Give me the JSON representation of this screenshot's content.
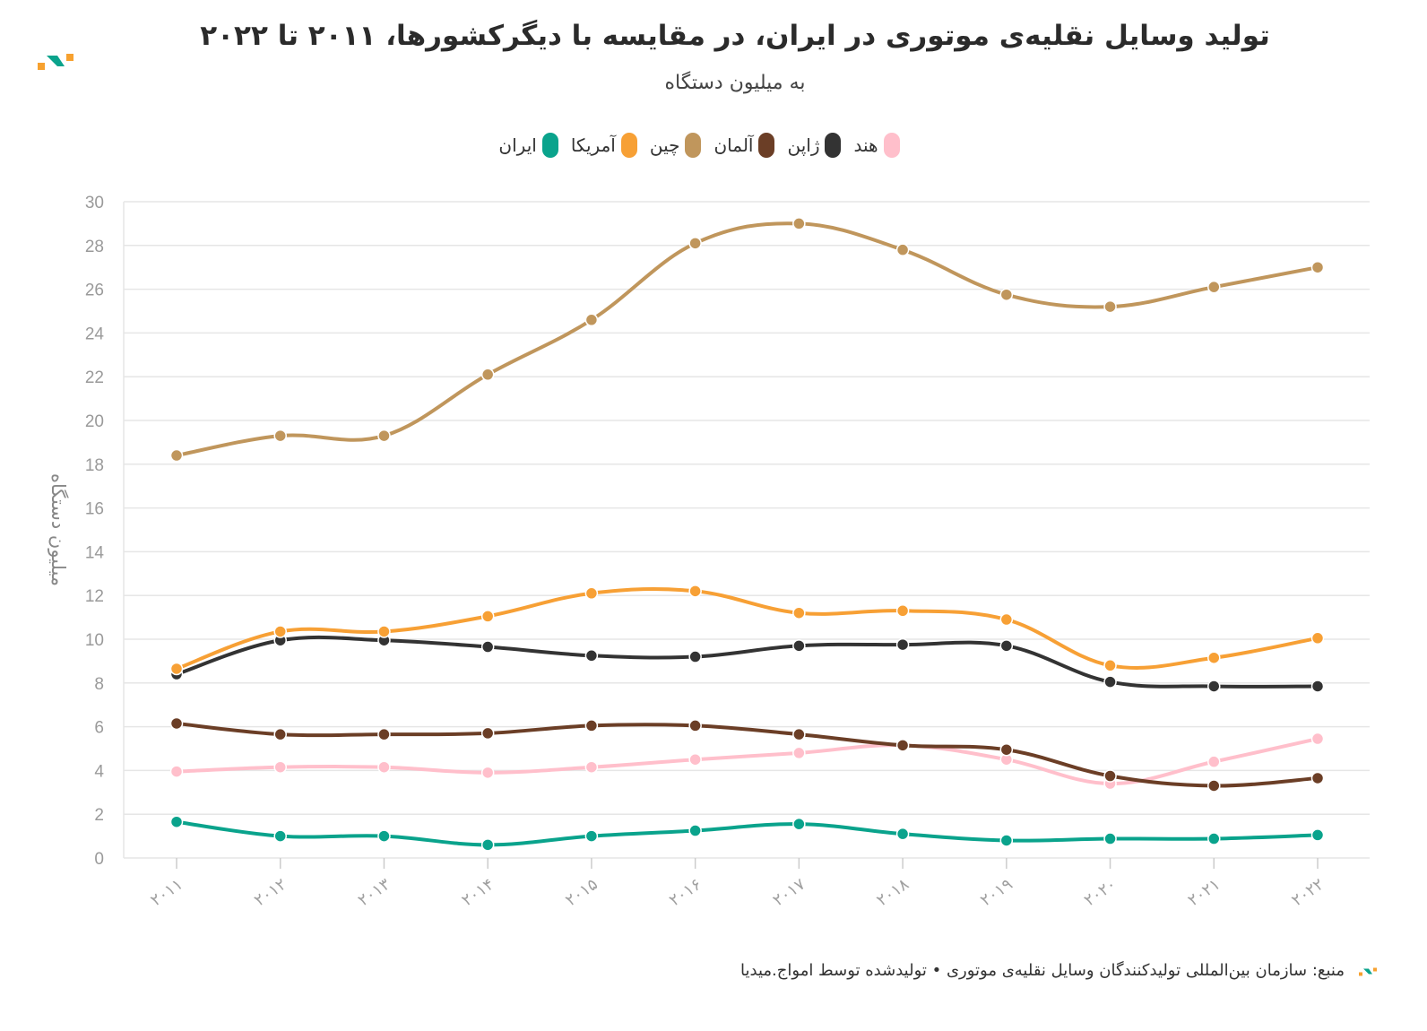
{
  "title": "تولید وسایل نقلیه‌ی موتوری در ایران، در مقایسه با دیگرکشورها، ۲۰۱۱ تا ۲۰۲۲",
  "subtitle": "به میلیون دستگاه",
  "footer": "منبع: سازمان بین‌المللی تولیدکنندگان وسایل نقلیه‌ی موتوری • تولیدشده توسط امواج.میدیا",
  "logo_colors": {
    "orange": "#f7a12f",
    "teal": "#0aa38c"
  },
  "chart_data": {
    "type": "line",
    "title": "تولید وسایل نقلیه‌ی موتوری در ایران، در مقایسه با دیگرکشورها، ۲۰۱۱ تا ۲۰۲۲",
    "ylabel": "میلیون دستگاه",
    "xlabel": "",
    "ylim": [
      0,
      30
    ],
    "yticks": [
      "0",
      "2",
      "4",
      "6",
      "8",
      "10",
      "12",
      "14",
      "16",
      "18",
      "20",
      "22",
      "24",
      "26",
      "28",
      "30"
    ],
    "grid": true,
    "legend_position": "top-center",
    "categories": [
      "۲۰۱۱",
      "۲۰۱۲",
      "۲۰۱۳",
      "۲۰۱۴",
      "۲۰۱۵",
      "۲۰۱۶",
      "۲۰۱۷",
      "۲۰۱۸",
      "۲۰۱۹",
      "۲۰۲۰",
      "۲۰۲۱",
      "۲۰۲۲"
    ],
    "series": [
      {
        "name": "هند",
        "color": "#ffbfcb",
        "values": [
          3.95,
          4.15,
          4.15,
          3.9,
          4.15,
          4.5,
          4.8,
          5.15,
          4.5,
          3.4,
          4.4,
          5.45
        ]
      },
      {
        "name": "ژاپن",
        "color": "#333333",
        "values": [
          8.4,
          9.95,
          9.95,
          9.65,
          9.25,
          9.2,
          9.7,
          9.75,
          9.7,
          8.05,
          7.85,
          7.85
        ]
      },
      {
        "name": "آلمان",
        "color": "#6b3e26",
        "values": [
          6.15,
          5.65,
          5.65,
          5.7,
          6.05,
          6.05,
          5.65,
          5.15,
          4.95,
          3.75,
          3.3,
          3.65
        ]
      },
      {
        "name": "چین",
        "color": "#c0965c",
        "values": [
          18.4,
          19.3,
          19.3,
          22.1,
          24.6,
          28.1,
          29.0,
          27.8,
          25.75,
          25.2,
          26.1,
          27.0
        ]
      },
      {
        "name": "آمریکا",
        "color": "#f7a035",
        "values": [
          8.65,
          10.35,
          10.35,
          11.05,
          12.1,
          12.2,
          11.2,
          11.3,
          10.9,
          8.8,
          9.15,
          10.05
        ]
      },
      {
        "name": "ایران",
        "color": "#0aa38c",
        "values": [
          1.65,
          1.0,
          1.0,
          0.6,
          1.0,
          1.25,
          1.55,
          1.1,
          0.8,
          0.88,
          0.88,
          1.05
        ]
      }
    ]
  }
}
